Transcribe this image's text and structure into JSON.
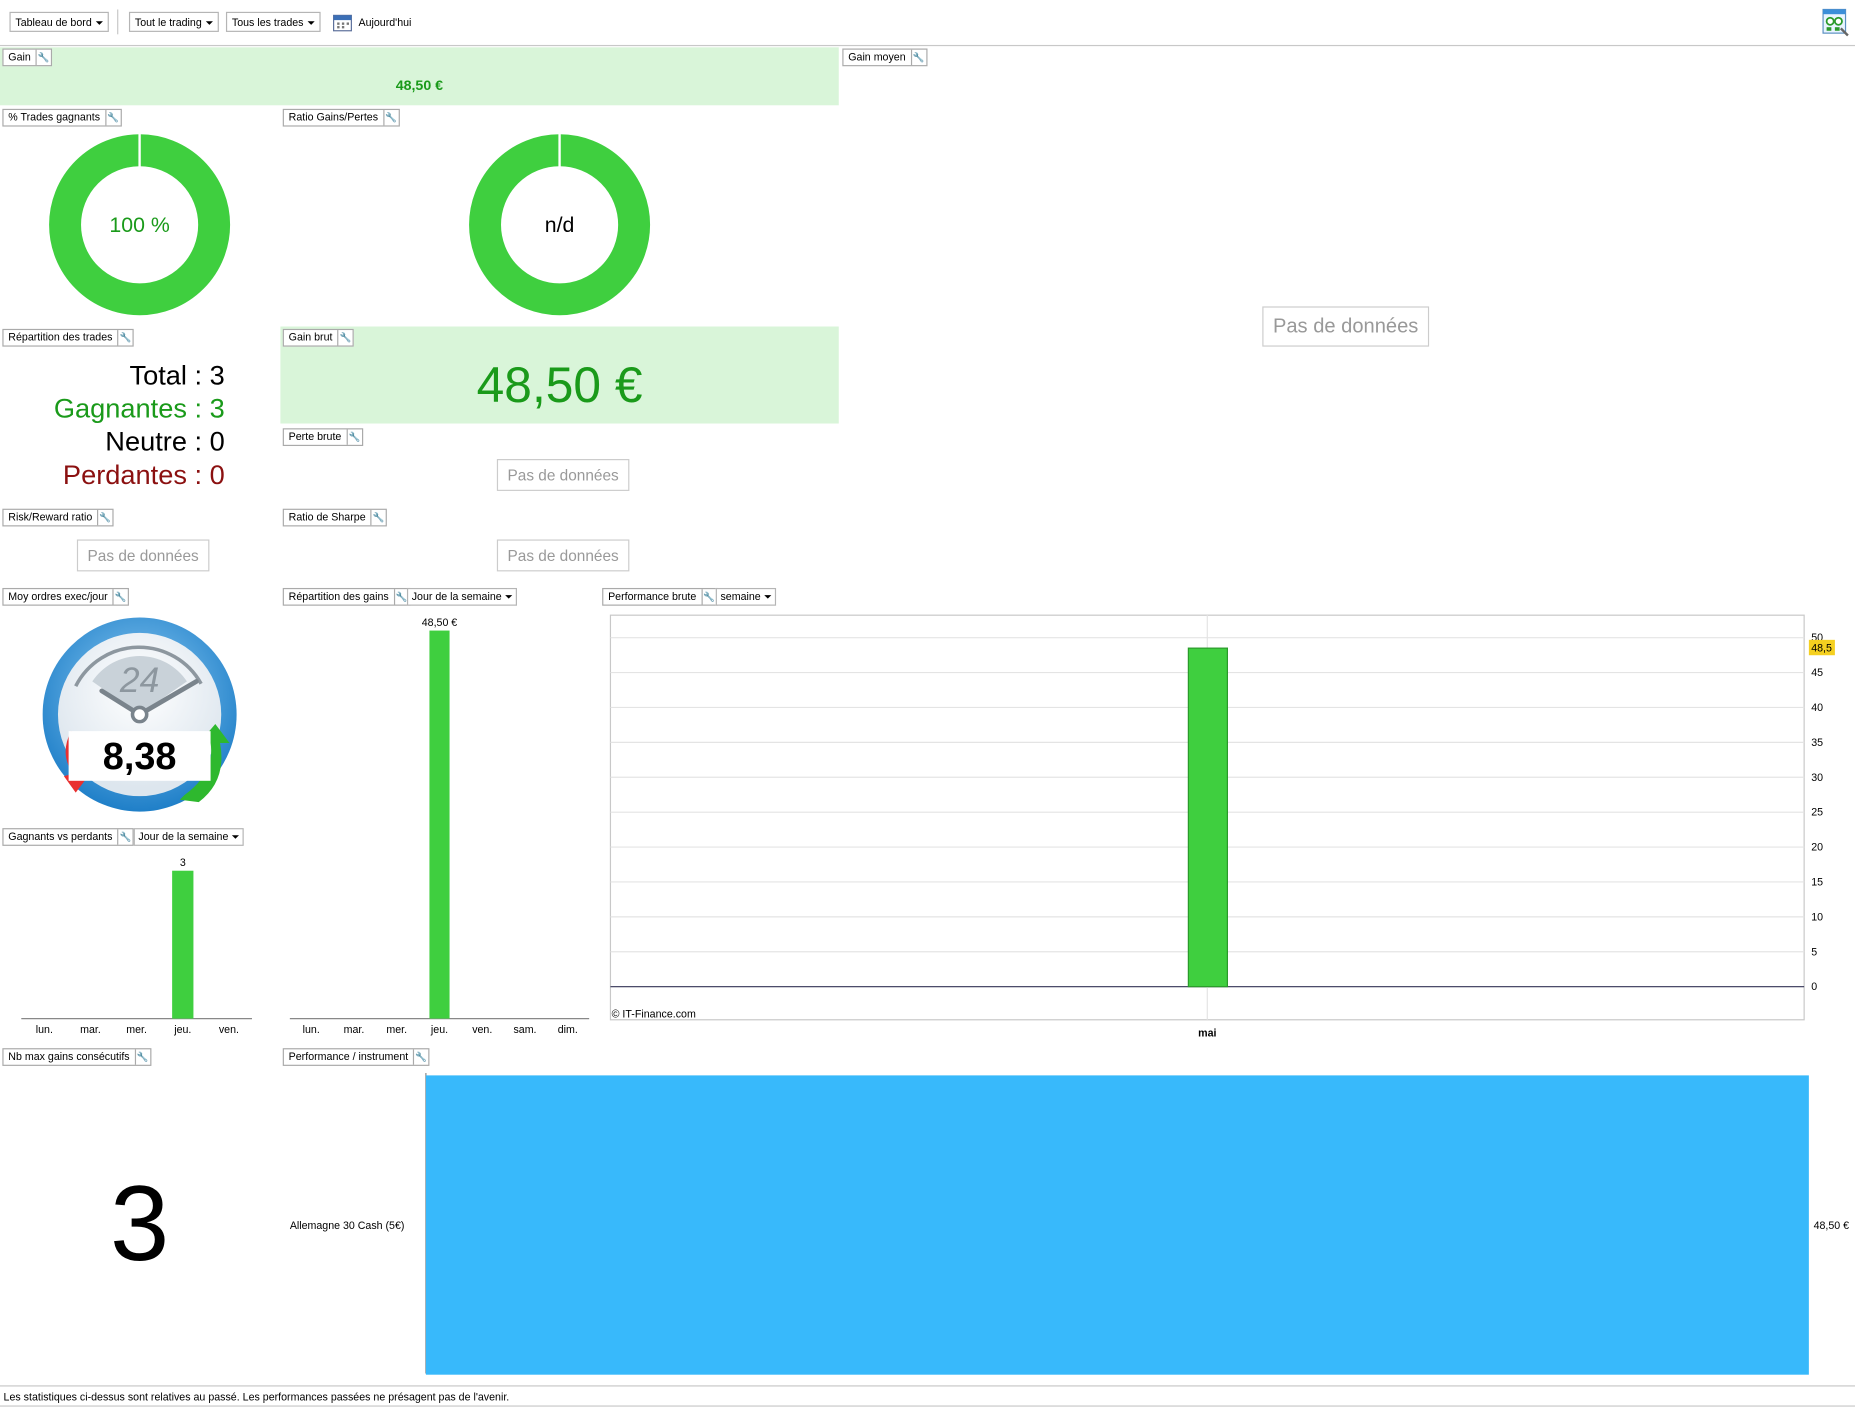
{
  "toolbar": {
    "dashboard": "Tableau de bord",
    "trading": "Tout le trading",
    "trades": "Tous les trades",
    "period": "Aujourd'hui"
  },
  "widgets": {
    "gain": {
      "label": "Gain",
      "value": "48,50 €"
    },
    "gain_moyen": {
      "label": "Gain moyen",
      "nodata": "Pas de données"
    },
    "pct_gagnants": {
      "label": "% Trades gagnants",
      "value": "100 %",
      "fraction": 1.0
    },
    "ratio_gains_pertes": {
      "label": "Ratio Gains/Pertes",
      "value": "n/d"
    },
    "repartition_trades": {
      "label": "Répartition des trades",
      "lines": [
        {
          "text": "Total : 3",
          "color": "#000000"
        },
        {
          "text": "Gagnantes : 3",
          "color": "#1a9a1a"
        },
        {
          "text": "Neutre : 0",
          "color": "#000000"
        },
        {
          "text": "Perdantes : 0",
          "color": "#8b1010"
        }
      ]
    },
    "gain_brut": {
      "label": "Gain brut",
      "value": "48,50 €"
    },
    "perte_brute": {
      "label": "Perte brute",
      "nodata": "Pas de données"
    },
    "risk_reward": {
      "label": "Risk/Reward ratio",
      "nodata": "Pas de données"
    },
    "sharpe": {
      "label": "Ratio de Sharpe",
      "nodata": "Pas de données"
    },
    "moy_ordres": {
      "label": "Moy ordres exec/jour",
      "clock_number": "24",
      "value": "8,38"
    },
    "repartition_gains": {
      "label": "Répartition des gains",
      "dropdown": "Jour de la semaine"
    },
    "perf_brute": {
      "label": "Performance brute",
      "dropdown": "semaine",
      "copyright": "© IT-Finance.com"
    },
    "gagnants_vs_perdants": {
      "label": "Gagnants vs perdants",
      "dropdown": "Jour de la semaine"
    },
    "nb_max_gains": {
      "label": "Nb max gains consécutifs",
      "value": "3"
    },
    "perf_instrument": {
      "label": "Performance / instrument"
    }
  },
  "footer": "Les statistiques ci-dessus sont relatives au passé. Les performances passées ne présagent pas de l'avenir.",
  "colors": {
    "green": "#3fcf3f",
    "green_text": "#1a9a1a",
    "light_green_bg": "#d9f5d9",
    "blue_bar": "#38b9fb",
    "red": "#8b1010"
  },
  "chart_data": [
    {
      "type": "bar",
      "id": "repartition_gains",
      "categories": [
        "lun.",
        "mar.",
        "mer.",
        "jeu.",
        "ven.",
        "sam.",
        "dim."
      ],
      "values": [
        0,
        0,
        0,
        48.5,
        0,
        0,
        0
      ],
      "data_labels": [
        "",
        "",
        "",
        "48,50 €",
        "",
        "",
        ""
      ]
    },
    {
      "type": "bar",
      "id": "gagnants_vs_perdants",
      "categories": [
        "lun.",
        "mar.",
        "mer.",
        "jeu.",
        "ven."
      ],
      "values": [
        0,
        0,
        0,
        3,
        0
      ],
      "data_labels": [
        "",
        "",
        "",
        "3",
        ""
      ]
    },
    {
      "type": "bar",
      "id": "performance_brute",
      "categories": [
        "mai"
      ],
      "values": [
        48.5
      ],
      "ylim": [
        0,
        50
      ],
      "yticks": [
        "0",
        "5",
        "10",
        "15",
        "20",
        "25",
        "30",
        "35",
        "40",
        "45",
        "50"
      ],
      "last_value_label": "48,5",
      "grid": true
    },
    {
      "type": "bar",
      "orientation": "horizontal",
      "id": "performance_instrument",
      "categories": [
        "Allemagne 30 Cash (5€)"
      ],
      "values": [
        48.5
      ],
      "data_labels": [
        "48,50 €"
      ]
    }
  ]
}
